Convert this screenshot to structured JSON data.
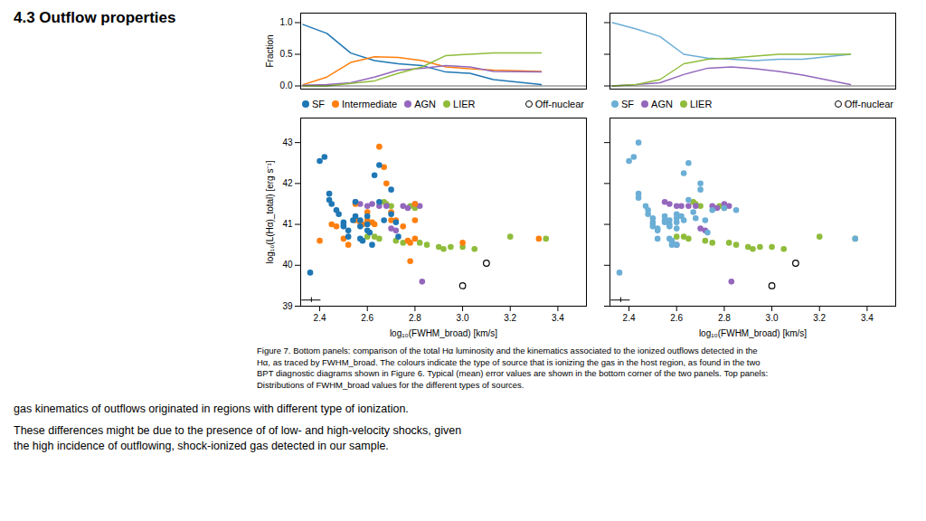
{
  "title": "4.3 Outflow properties",
  "annotations": [
    "Figure 7. Bottom panels: comparison of the total Hα luminosity and the kinematics associated to the ionized outflows detected in the\nHα, as traced by FWHM_broad. The colours indicate the type of source that is ionizing the gas in the host region, as found in the two\nBPT diagnostic diagrams shown in Figure 6. Typical (mean) error values are shown in the bottom corner of the two panels. Top panels:\nDistributions of FWHM_broad values for the different types of sources.",
    "gas kinematics of outflows originated in regions with different type of ionization.",
    "These differences might be due to the presence of of low- and high-velocity shocks, given\nthe high incidence of outflowing, shock-ionized gas detected in our sample."
  ],
  "chart_data": [
    {
      "type": "line",
      "ylabel": "Fraction",
      "x": [
        2.33,
        2.43,
        2.53,
        2.63,
        2.73,
        2.83,
        2.93,
        3.03,
        3.13,
        3.33
      ],
      "series": [
        {
          "name": "SF",
          "color": "#1f77b4",
          "values": [
            0.97,
            0.83,
            0.52,
            0.4,
            0.35,
            0.32,
            0.22,
            0.2,
            0.1,
            0.02
          ]
        },
        {
          "name": "Intermediate",
          "color": "#ff7f0e",
          "values": [
            0.02,
            0.14,
            0.37,
            0.46,
            0.45,
            0.4,
            0.3,
            0.27,
            0.25,
            0.23
          ]
        },
        {
          "name": "AGN",
          "color": "#9467bd",
          "values": [
            0.01,
            0.02,
            0.05,
            0.14,
            0.25,
            0.28,
            0.32,
            0.3,
            0.23,
            0.22
          ]
        },
        {
          "name": "LIER",
          "color": "#8fbc3b",
          "values": [
            0.0,
            0.0,
            0.04,
            0.08,
            0.2,
            0.3,
            0.48,
            0.5,
            0.52,
            0.52
          ]
        }
      ],
      "hline": 0,
      "xlim": [
        2.32,
        3.52
      ],
      "ylim": [
        -0.05,
        1.15
      ],
      "yticks": [
        {
          "value": 0,
          "label": "0.0"
        },
        0.5,
        {
          "value": 1,
          "label": "1.0"
        }
      ],
      "tick_labels": "y"
    },
    {
      "type": "line",
      "x": [
        2.33,
        2.43,
        2.53,
        2.63,
        2.73,
        2.83,
        2.93,
        3.03,
        3.13,
        3.33
      ],
      "series": [
        {
          "name": "SF",
          "color": "#6baed6",
          "values": [
            1.0,
            0.9,
            0.78,
            0.5,
            0.44,
            0.42,
            0.4,
            0.42,
            0.42,
            0.5
          ]
        },
        {
          "name": "AGN",
          "color": "#9467bd",
          "values": [
            0.0,
            0.02,
            0.05,
            0.18,
            0.28,
            0.3,
            0.27,
            0.23,
            0.17,
            0.02
          ]
        },
        {
          "name": "LIER",
          "color": "#8fbc3b",
          "values": [
            0.0,
            0.02,
            0.1,
            0.35,
            0.42,
            0.44,
            0.47,
            0.5,
            0.5,
            0.5
          ]
        }
      ],
      "hline": 0,
      "xlim": [
        2.32,
        3.52
      ],
      "ylim": [
        -0.05,
        1.15
      ],
      "yticks": [
        0,
        0.5,
        1
      ],
      "tick_labels": false
    },
    {
      "type": "scatter",
      "xlabel": "log₁₀(FWHM_broad) [km/s]",
      "ylabel": "log₁₀(L(Hα)_total) [erg s⁻¹]",
      "series": [
        {
          "name": "SF",
          "color": "#1f77b4",
          "values": [
            [
              2.36,
              39.82
            ],
            [
              2.4,
              42.55
            ],
            [
              2.42,
              42.65
            ],
            [
              2.44,
              41.75
            ],
            [
              2.44,
              41.6
            ],
            [
              2.45,
              41.5
            ],
            [
              2.47,
              41.35
            ],
            [
              2.48,
              41.25
            ],
            [
              2.5,
              41.05
            ],
            [
              2.5,
              40.95
            ],
            [
              2.5,
              41.0
            ],
            [
              2.52,
              40.85
            ],
            [
              2.52,
              40.7
            ],
            [
              2.54,
              41.1
            ],
            [
              2.55,
              41.55
            ],
            [
              2.55,
              41.2
            ],
            [
              2.57,
              41.1
            ],
            [
              2.57,
              40.95
            ],
            [
              2.57,
              40.65
            ],
            [
              2.58,
              40.6
            ],
            [
              2.6,
              41.2
            ],
            [
              2.6,
              41.0
            ],
            [
              2.6,
              40.85
            ],
            [
              2.61,
              40.8
            ],
            [
              2.62,
              40.5
            ],
            [
              2.63,
              42.2
            ],
            [
              2.65,
              42.45
            ],
            [
              2.65,
              41.55
            ],
            [
              2.67,
              41.1
            ],
            [
              2.7,
              41.85
            ],
            [
              2.7,
              41.25
            ],
            [
              2.72,
              41.05
            ],
            [
              2.73,
              40.7
            ]
          ]
        },
        {
          "name": "Intermediate",
          "color": "#ff7f0e",
          "values": [
            [
              2.4,
              40.6
            ],
            [
              2.45,
              41.0
            ],
            [
              2.47,
              40.95
            ],
            [
              2.5,
              40.65
            ],
            [
              2.52,
              40.5
            ],
            [
              2.55,
              41.5
            ],
            [
              2.55,
              41.1
            ],
            [
              2.57,
              41.05
            ],
            [
              2.58,
              41.0
            ],
            [
              2.6,
              41.3
            ],
            [
              2.6,
              41.1
            ],
            [
              2.62,
              41.05
            ],
            [
              2.63,
              41.0
            ],
            [
              2.65,
              42.9
            ],
            [
              2.67,
              42.4
            ],
            [
              2.68,
              42.0
            ],
            [
              2.7,
              41.3
            ],
            [
              2.7,
              41.1
            ],
            [
              2.72,
              41.1
            ],
            [
              2.75,
              40.95
            ],
            [
              2.77,
              40.6
            ],
            [
              2.78,
              40.55
            ],
            [
              2.78,
              40.1
            ],
            [
              2.8,
              41.5
            ],
            [
              2.8,
              41.1
            ],
            [
              2.8,
              40.65
            ],
            [
              3.0,
              40.55
            ],
            [
              3.32,
              40.65
            ]
          ]
        },
        {
          "name": "AGN",
          "color": "#9467bd",
          "values": [
            [
              2.55,
              41.55
            ],
            [
              2.57,
              41.5
            ],
            [
              2.6,
              41.45
            ],
            [
              2.62,
              41.5
            ],
            [
              2.65,
              41.45
            ],
            [
              2.68,
              41.45
            ],
            [
              2.7,
              40.9
            ],
            [
              2.72,
              40.85
            ],
            [
              2.75,
              41.45
            ],
            [
              2.77,
              41.4
            ],
            [
              2.8,
              41.5
            ],
            [
              2.82,
              41.45
            ],
            [
              2.83,
              39.6
            ]
          ]
        },
        {
          "name": "LIER",
          "color": "#8fbc3b",
          "values": [
            [
              2.6,
              40.7
            ],
            [
              2.63,
              40.7
            ],
            [
              2.65,
              40.65
            ],
            [
              2.67,
              41.55
            ],
            [
              2.68,
              41.5
            ],
            [
              2.7,
              41.45
            ],
            [
              2.72,
              40.6
            ],
            [
              2.75,
              40.55
            ],
            [
              2.78,
              41.45
            ],
            [
              2.8,
              41.4
            ],
            [
              2.82,
              40.55
            ],
            [
              2.85,
              40.5
            ],
            [
              2.9,
              40.45
            ],
            [
              2.92,
              40.4
            ],
            [
              2.95,
              40.45
            ],
            [
              3.0,
              40.45
            ],
            [
              3.05,
              40.4
            ],
            [
              3.2,
              40.7
            ],
            [
              3.35,
              40.65
            ]
          ]
        },
        {
          "name": "Off-nuclear",
          "color": "black",
          "marker": "open_circle",
          "values": [
            [
              3.1,
              40.05
            ],
            [
              3.0,
              39.5
            ]
          ]
        }
      ],
      "error_bar": {
        "x": 2.365,
        "y": 39.15,
        "dx": 0.04,
        "dy": 0.06,
        "color": "black"
      },
      "xlim": [
        2.32,
        3.52
      ],
      "ylim": [
        39.0,
        43.6
      ],
      "xticks": [
        2.4,
        2.6,
        2.8,
        {
          "value": 3.0,
          "label": "3.0"
        },
        3.2,
        3.4
      ],
      "yticks": [
        39,
        40,
        41,
        42,
        43
      ],
      "legend": "top"
    },
    {
      "type": "scatter",
      "xlabel": "log₁₀(FWHM_broad) [km/s]",
      "series": [
        {
          "name": "SF",
          "color": "#6baed6",
          "values": [
            [
              2.36,
              39.82
            ],
            [
              2.4,
              42.55
            ],
            [
              2.42,
              42.65
            ],
            [
              2.44,
              43.0
            ],
            [
              2.44,
              41.75
            ],
            [
              2.44,
              41.65
            ],
            [
              2.47,
              41.45
            ],
            [
              2.48,
              41.35
            ],
            [
              2.48,
              41.25
            ],
            [
              2.5,
              41.15
            ],
            [
              2.5,
              41.05
            ],
            [
              2.5,
              41.0
            ],
            [
              2.5,
              40.95
            ],
            [
              2.52,
              40.9
            ],
            [
              2.52,
              40.85
            ],
            [
              2.52,
              40.65
            ],
            [
              2.55,
              41.2
            ],
            [
              2.55,
              41.1
            ],
            [
              2.55,
              41.05
            ],
            [
              2.57,
              41.1
            ],
            [
              2.57,
              41.0
            ],
            [
              2.57,
              40.95
            ],
            [
              2.57,
              40.65
            ],
            [
              2.58,
              40.6
            ],
            [
              2.58,
              40.5
            ],
            [
              2.6,
              41.25
            ],
            [
              2.6,
              41.15
            ],
            [
              2.6,
              41.05
            ],
            [
              2.6,
              40.9
            ],
            [
              2.6,
              40.5
            ],
            [
              2.62,
              41.2
            ],
            [
              2.63,
              42.25
            ],
            [
              2.63,
              41.1
            ],
            [
              2.65,
              42.5
            ],
            [
              2.65,
              41.6
            ],
            [
              2.67,
              41.3
            ],
            [
              2.68,
              41.15
            ],
            [
              2.7,
              41.85
            ],
            [
              2.7,
              42.0
            ],
            [
              2.72,
              41.1
            ],
            [
              2.73,
              40.8
            ],
            [
              2.75,
              41.35
            ],
            [
              2.8,
              41.4
            ],
            [
              2.85,
              41.35
            ],
            [
              3.35,
              40.65
            ]
          ]
        },
        {
          "name": "AGN",
          "color": "#9467bd",
          "values": [
            [
              2.55,
              41.55
            ],
            [
              2.57,
              41.5
            ],
            [
              2.6,
              41.45
            ],
            [
              2.6,
              40.5
            ],
            [
              2.62,
              41.45
            ],
            [
              2.65,
              41.45
            ],
            [
              2.68,
              41.45
            ],
            [
              2.7,
              40.9
            ],
            [
              2.72,
              40.85
            ],
            [
              2.75,
              41.45
            ],
            [
              2.77,
              41.4
            ],
            [
              2.8,
              41.5
            ],
            [
              2.82,
              41.45
            ],
            [
              2.83,
              39.6
            ]
          ]
        },
        {
          "name": "LIER",
          "color": "#8fbc3b",
          "values": [
            [
              2.6,
              40.7
            ],
            [
              2.63,
              40.7
            ],
            [
              2.65,
              40.65
            ],
            [
              2.67,
              41.55
            ],
            [
              2.68,
              41.5
            ],
            [
              2.7,
              41.45
            ],
            [
              2.72,
              40.6
            ],
            [
              2.75,
              40.55
            ],
            [
              2.78,
              41.45
            ],
            [
              2.8,
              41.4
            ],
            [
              2.82,
              40.55
            ],
            [
              2.85,
              40.5
            ],
            [
              2.9,
              40.45
            ],
            [
              2.92,
              40.4
            ],
            [
              2.95,
              40.45
            ],
            [
              3.0,
              40.45
            ],
            [
              3.05,
              40.4
            ],
            [
              3.2,
              40.7
            ],
            [
              3.35,
              40.65
            ]
          ]
        },
        {
          "name": "Off-nuclear",
          "color": "black",
          "marker": "open_circle",
          "values": [
            [
              3.1,
              40.05
            ],
            [
              3.0,
              39.5
            ]
          ]
        }
      ],
      "error_bar": {
        "x": 2.365,
        "y": 39.15,
        "dx": 0.04,
        "dy": 0.06,
        "color": "black"
      },
      "xlim": [
        2.32,
        3.52
      ],
      "ylim": [
        39.0,
        43.6
      ],
      "xticks": [
        2.4,
        2.6,
        2.8,
        {
          "value": 3.0,
          "label": "3.0"
        },
        3.2,
        3.4
      ],
      "yticks": [
        39,
        40,
        41,
        42,
        43
      ],
      "tick_labels": "x",
      "legend": "top"
    }
  ]
}
